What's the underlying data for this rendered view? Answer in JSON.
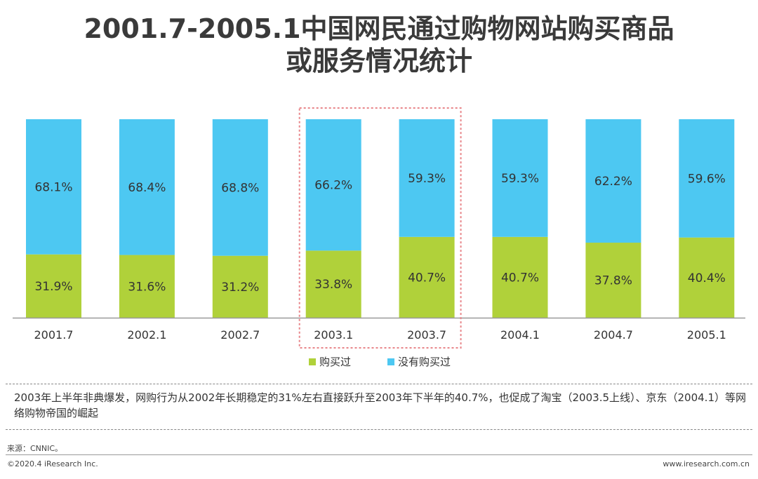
{
  "title": {
    "line1": "2001.7-2005.1中国网民通过购物网站购买商品",
    "line2": "或服务情况统计"
  },
  "colors": {
    "bought": "#b0d13a",
    "not_bought": "#4dc8f2",
    "highlight": "#e8868a"
  },
  "chart_data": {
    "type": "bar",
    "stacked": true,
    "percent_stacked": true,
    "categories": [
      "2001.7",
      "2002.1",
      "2002.7",
      "2003.1",
      "2003.7",
      "2004.1",
      "2004.7",
      "2005.1"
    ],
    "series": [
      {
        "name": "购买过",
        "values": [
          31.9,
          31.6,
          31.2,
          33.8,
          40.7,
          40.7,
          37.8,
          40.4
        ],
        "labels": [
          "31.9%",
          "31.6%",
          "31.2%",
          "33.8%",
          "40.7%",
          "40.7%",
          "37.8%",
          "40.4%"
        ]
      },
      {
        "name": "没有购买过",
        "values": [
          68.1,
          68.4,
          68.8,
          66.2,
          59.3,
          59.3,
          62.2,
          59.6
        ],
        "labels": [
          "68.1%",
          "68.4%",
          "68.8%",
          "66.2%",
          "59.3%",
          "59.3%",
          "62.2%",
          "59.6%"
        ]
      }
    ],
    "ylim": [
      0,
      100
    ],
    "grid": false,
    "legend_position": "bottom",
    "highlighted_categories": [
      "2003.1",
      "2003.7"
    ]
  },
  "note": "2003年上半年非典爆发，网购行为从2002年长期稳定的31%左右直接跃升至2003年下半年的40.7%，也促成了淘宝（2003.5上线）、京东（2004.1）等网络购物帝国的崛起",
  "source": "来源：CNNIC。",
  "footer": {
    "copyright": "©2020.4 iResearch Inc.",
    "website": "www.iresearch.com.cn"
  }
}
